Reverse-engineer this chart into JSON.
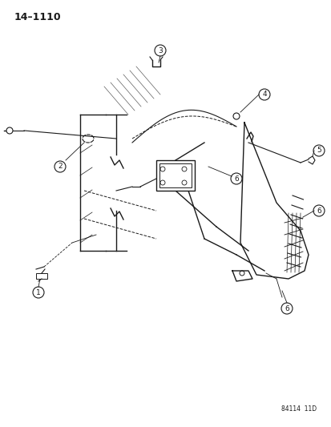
{
  "title": "14–1110",
  "footer": "84114  11D",
  "bg_color": "#ffffff",
  "line_color": "#1a1a1a",
  "label_color": "#1a1a1a",
  "fig_width": 4.14,
  "fig_height": 5.33,
  "dpi": 100
}
